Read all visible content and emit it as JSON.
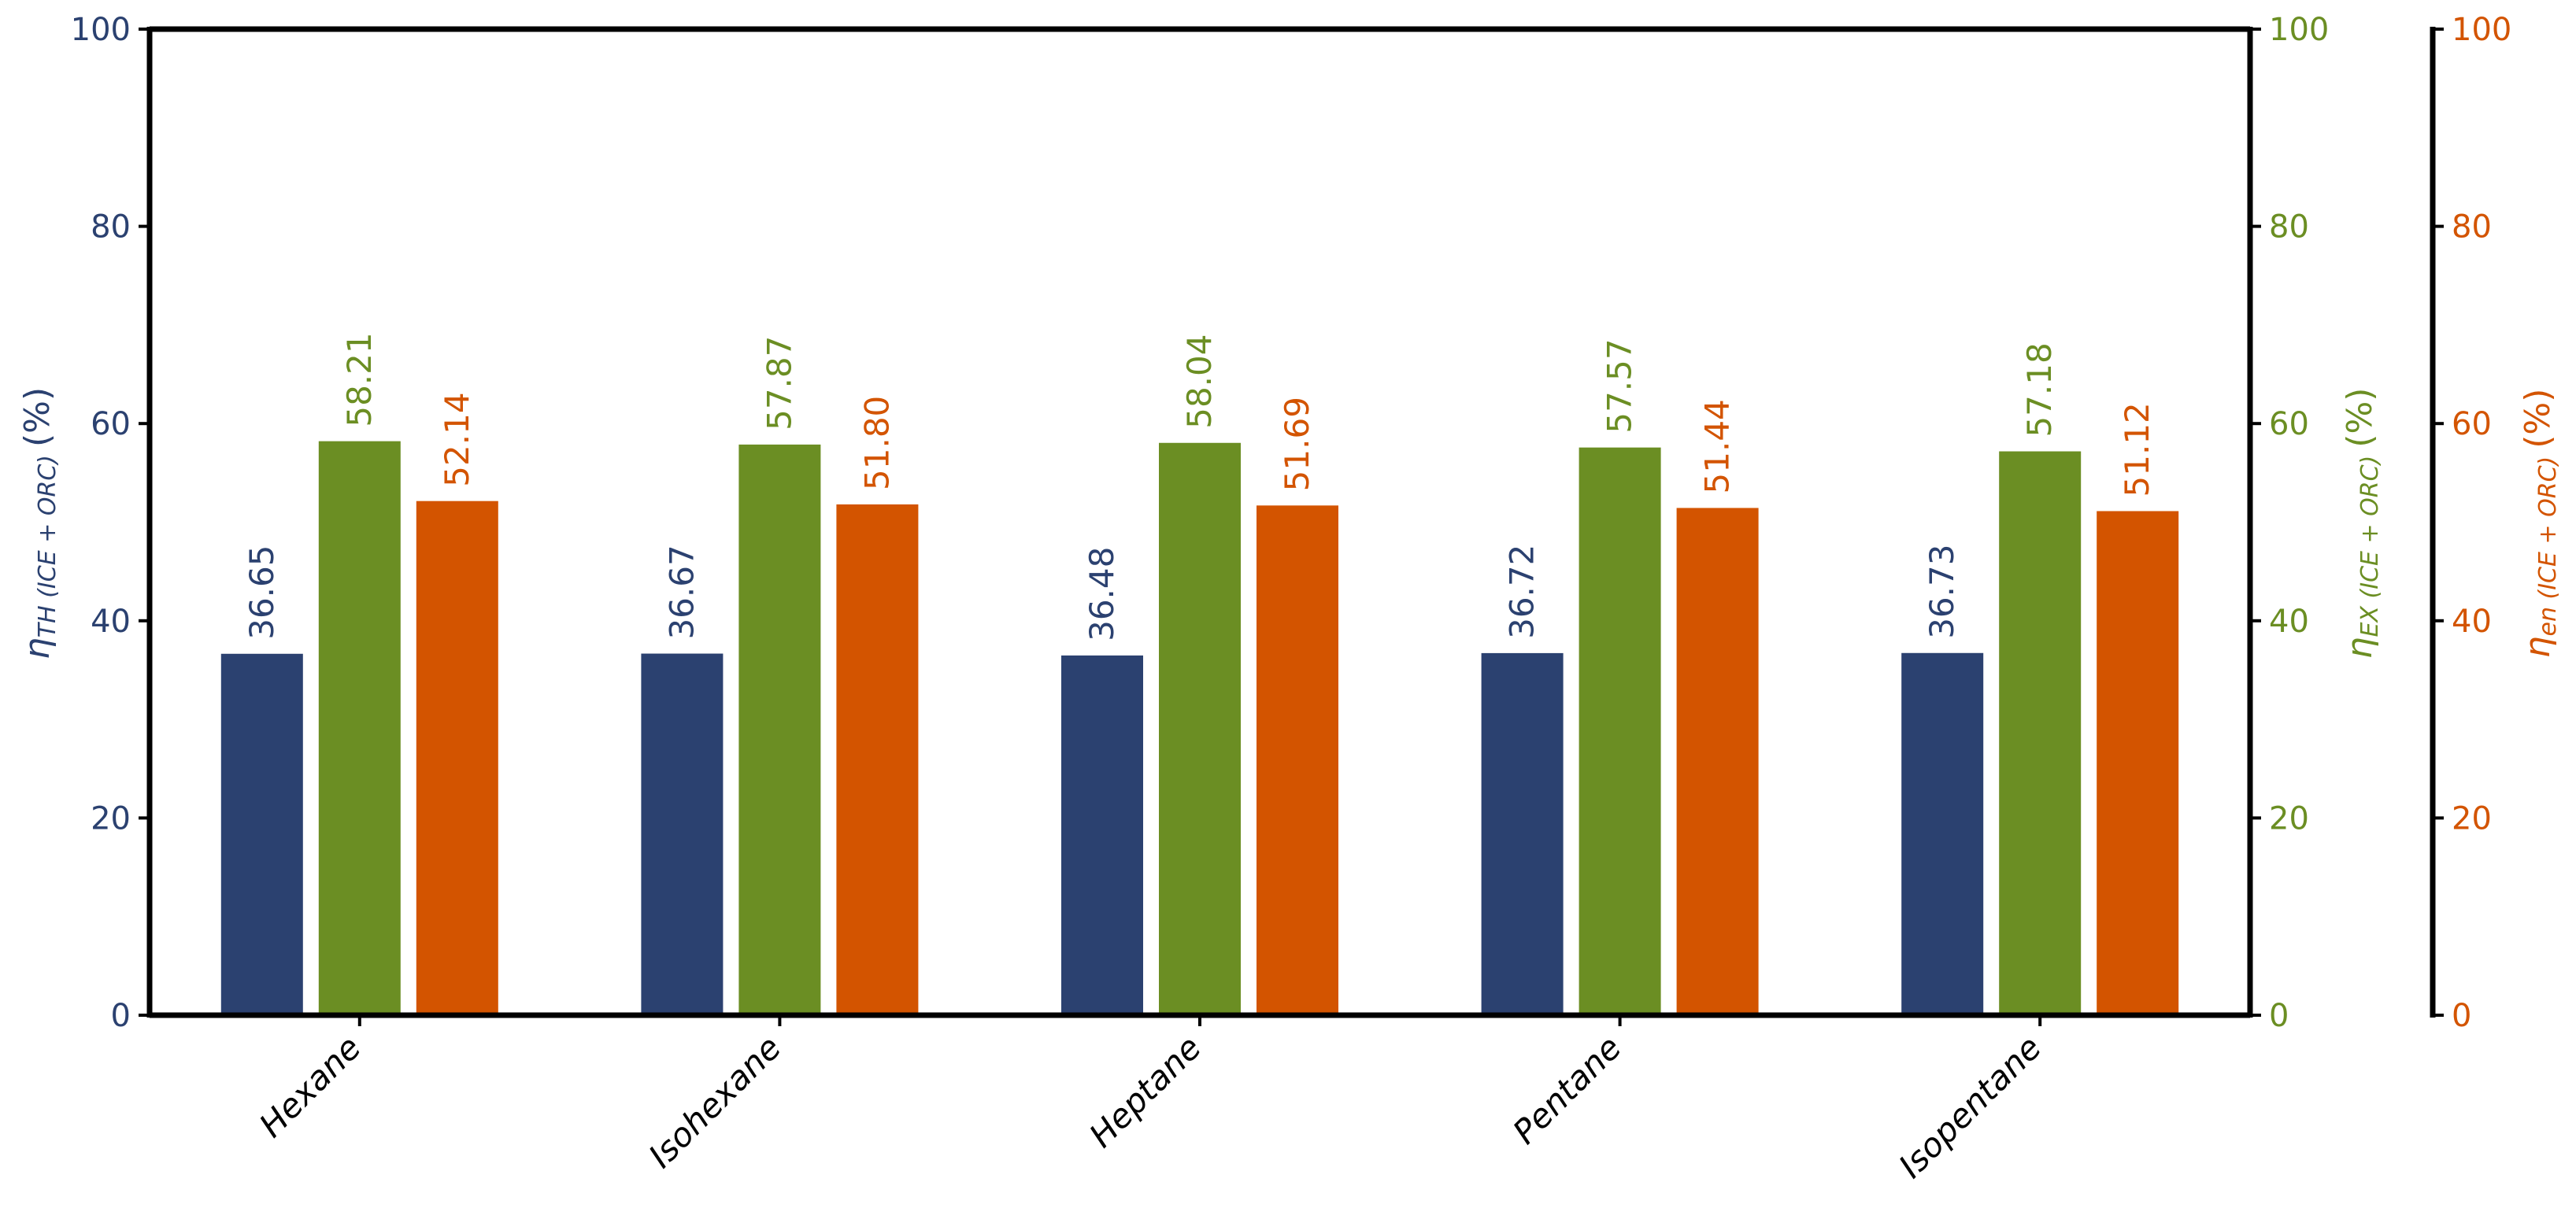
{
  "chart_data": {
    "type": "bar",
    "categories": [
      "Hexane",
      "Isohexane",
      "Heptane",
      "Pentane",
      "Isopentane"
    ],
    "series": [
      {
        "axis": "left",
        "color": "#2b4170",
        "values": [
          36.65,
          36.67,
          36.48,
          36.72,
          36.73
        ],
        "labels": [
          "36.65",
          "36.67",
          "36.48",
          "36.72",
          "36.73"
        ]
      },
      {
        "axis": "right1",
        "color": "#6b8e23",
        "values": [
          58.21,
          57.87,
          58.04,
          57.57,
          57.18
        ],
        "labels": [
          "58.21",
          "57.87",
          "58.04",
          "57.57",
          "57.18"
        ]
      },
      {
        "axis": "right2",
        "color": "#d35400",
        "values": [
          52.14,
          51.8,
          51.69,
          51.44,
          51.12
        ],
        "labels": [
          "52.14",
          "51.80",
          "51.69",
          "51.44",
          "51.12"
        ]
      }
    ],
    "ylim": [
      0,
      100
    ],
    "yticks": [
      "0",
      "20",
      "40",
      "60",
      "80",
      "100"
    ],
    "axes": {
      "left": {
        "label_symbol": "η",
        "label_sub": "TH (ICE + ORC)",
        "label_unit": "(%)",
        "color": "#2b4170"
      },
      "right1": {
        "label_symbol": "η",
        "label_sub": "EX (ICE + ORC)",
        "label_unit": "(%)",
        "color": "#6b8e23"
      },
      "right2": {
        "label_symbol": "η",
        "label_sub": "en (ICE + ORC)",
        "label_unit": "(%)",
        "color": "#d35400"
      }
    },
    "grid": false,
    "legend": "none"
  }
}
